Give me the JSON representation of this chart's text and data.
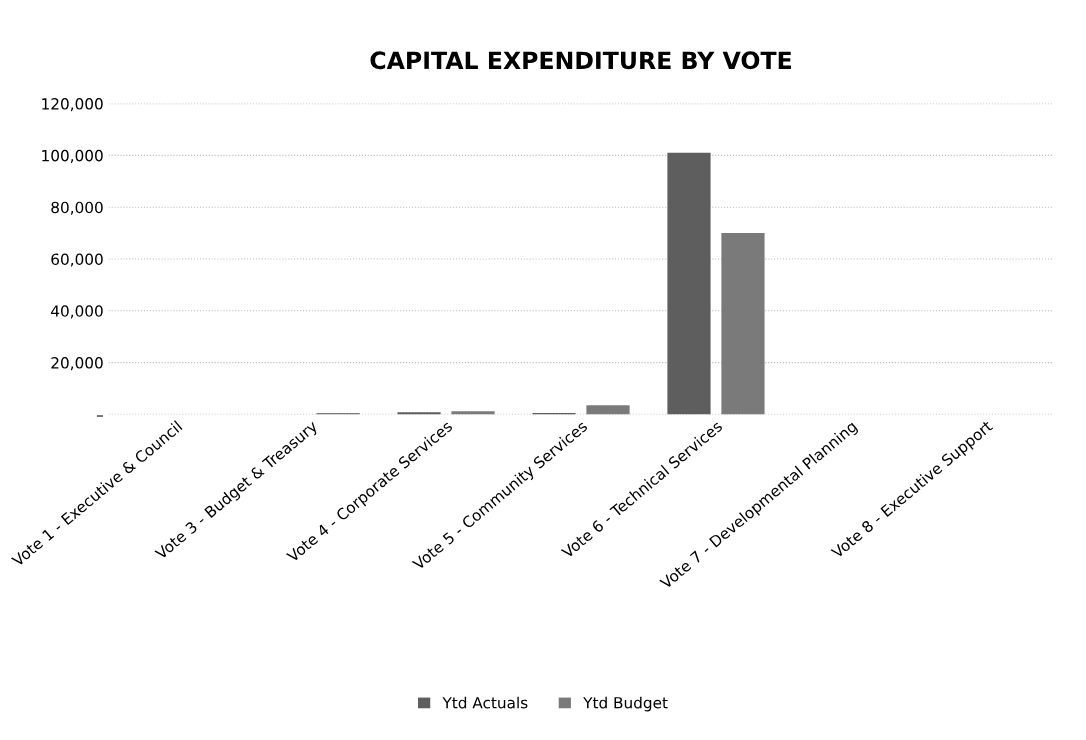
{
  "chart_data": {
    "type": "bar",
    "title": "CAPITAL EXPENDITURE BY VOTE",
    "categories": [
      "Vote 1 - Executive & Council",
      "Vote 3 - Budget & Treasury",
      "Vote 4 - Corporate Services",
      "Vote 5 - Community Services",
      "Vote 6 - Technical Services",
      "Vote 7 - Developmental Planning",
      "Vote 8 - Executive Support"
    ],
    "series": [
      {
        "name": "Ytd Actuals",
        "color": "#5e5e5e",
        "values": [
          0,
          0,
          800,
          500,
          101000,
          0,
          0
        ]
      },
      {
        "name": "Ytd Budget",
        "color": "#7a7a7a",
        "values": [
          0,
          500,
          1200,
          3500,
          70000,
          0,
          0
        ]
      }
    ],
    "ylim": [
      0,
      120000
    ],
    "yticks": [
      {
        "value": 0,
        "label": "–"
      },
      {
        "value": 20000,
        "label": "20,000"
      },
      {
        "value": 40000,
        "label": "40,000"
      },
      {
        "value": 60000,
        "label": "60,000"
      },
      {
        "value": 80000,
        "label": "80,000"
      },
      {
        "value": 100000,
        "label": "100,000"
      },
      {
        "value": 120000,
        "label": "120,000"
      }
    ],
    "grid": "y",
    "legend": "bottom"
  }
}
